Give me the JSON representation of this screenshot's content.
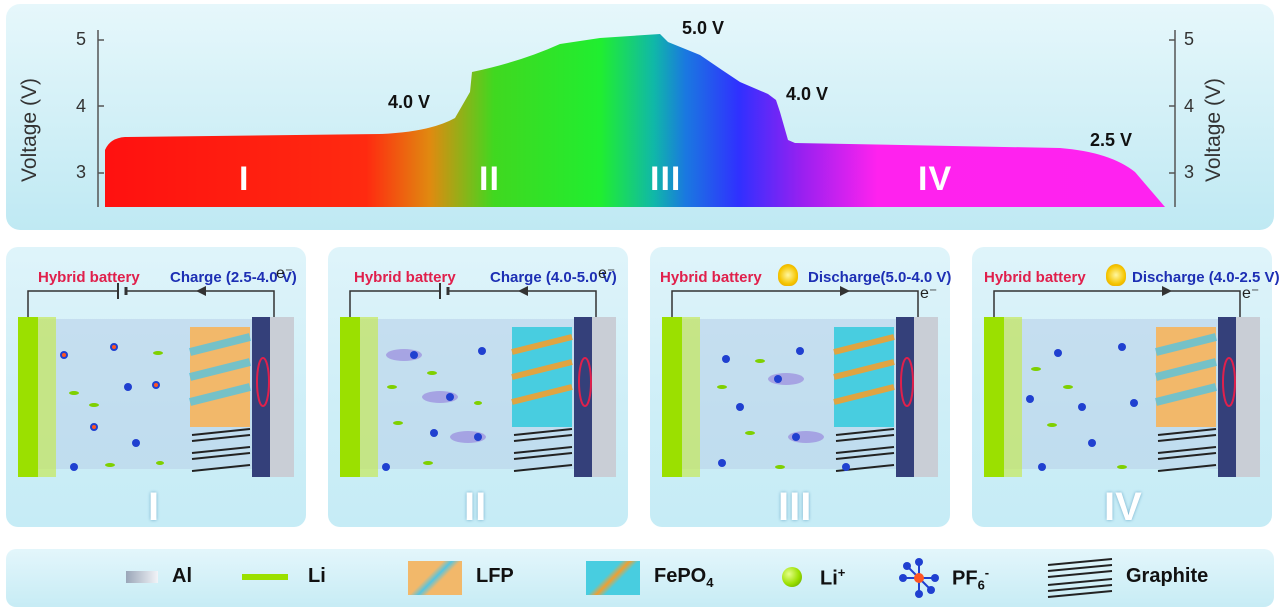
{
  "chart": {
    "ylabel": "Voltage (V)",
    "yticks": [
      "3",
      "4",
      "5"
    ],
    "annotations": [
      "4.0 V",
      "5.0 V",
      "4.0 V",
      "2.5 V"
    ],
    "stages": [
      "I",
      "II",
      "III",
      "IV"
    ]
  },
  "chart_data": {
    "type": "area",
    "title": "",
    "xlabel": "",
    "ylabel": "Voltage (V)",
    "ylim": [
      2.5,
      5.2
    ],
    "y_ticks": [
      3,
      4,
      5
    ],
    "grid": false,
    "regions": [
      "I",
      "II",
      "III",
      "IV"
    ],
    "annotations": [
      {
        "label": "4.0 V",
        "voltage": 4.0
      },
      {
        "label": "5.0 V",
        "voltage": 5.0
      },
      {
        "label": "4.0 V",
        "voltage": 4.0
      },
      {
        "label": "2.5 V",
        "voltage": 2.5
      }
    ]
  },
  "cells": [
    {
      "title": "Hybrid battery",
      "mode": "Charge (2.5-4.0 V)",
      "electron": "e⁻",
      "stage": "I",
      "bulb": false
    },
    {
      "title": "Hybrid battery",
      "mode": "Charge (4.0-5.0 V)",
      "electron": "e⁻",
      "stage": "II",
      "bulb": false
    },
    {
      "title": "Hybrid battery",
      "mode": "Discharge(5.0-4.0 V)",
      "electron": "e⁻",
      "stage": "III",
      "bulb": true
    },
    {
      "title": "Hybrid battery",
      "mode": "Discharge (4.0-2.5 V)",
      "electron": "e⁻",
      "stage": "IV",
      "bulb": true
    }
  ],
  "legend": [
    {
      "label": "Al"
    },
    {
      "label": "Li"
    },
    {
      "label": "LFP"
    },
    {
      "label": "FePO",
      "sub": "4"
    },
    {
      "label": "Li",
      "sup": "+"
    },
    {
      "label": "PF",
      "sub": "6",
      "sup": "-"
    },
    {
      "label": "Graphite"
    }
  ],
  "colors": {
    "stage_I": "#ff1a1a",
    "stage_II": "#22dd22",
    "stage_III": "#3030ff",
    "stage_IV": "#ff22ee",
    "hybrid_label": "#e0204c",
    "mode_label": "#1d2fb4",
    "li_green": "#9be000",
    "al_gray": "#c9ced6"
  }
}
